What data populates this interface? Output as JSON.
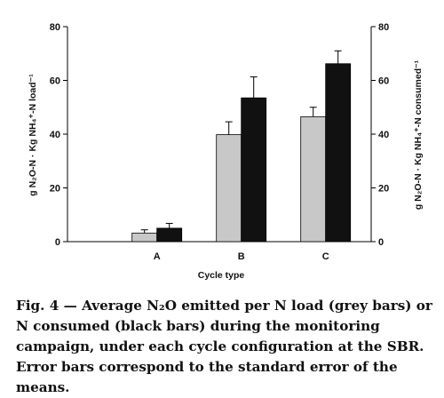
{
  "chart_data": {
    "type": "bar",
    "categories": [
      "A",
      "B",
      "C"
    ],
    "series": [
      {
        "color": "#c8c8c8",
        "values": [
          3.2,
          39.8,
          46.5
        ],
        "errors": [
          1.2,
          4.8,
          3.5
        ]
      },
      {
        "color": "#111111",
        "values": [
          5.0,
          53.5,
          66.2
        ],
        "errors": [
          1.8,
          7.8,
          4.8
        ]
      }
    ],
    "xlabel": "Cycle type",
    "ylabel_left": "g N₂O-N · Kg NH₄⁺-N load⁻¹",
    "ylabel_right": "g N₂O-N · Kg NH₄⁺-N consumed⁻¹",
    "ylim": [
      0,
      80
    ],
    "yticks": [
      0,
      20,
      40,
      60,
      80
    ],
    "grid": false
  },
  "caption": {
    "label": "Fig. 4",
    "dash": " — ",
    "text": "Average N₂O emitted per N load (grey bars) or N consumed (black bars) during the monitoring campaign, under each cycle configuration at the SBR. Error bars correspond to the standard error of the means."
  }
}
